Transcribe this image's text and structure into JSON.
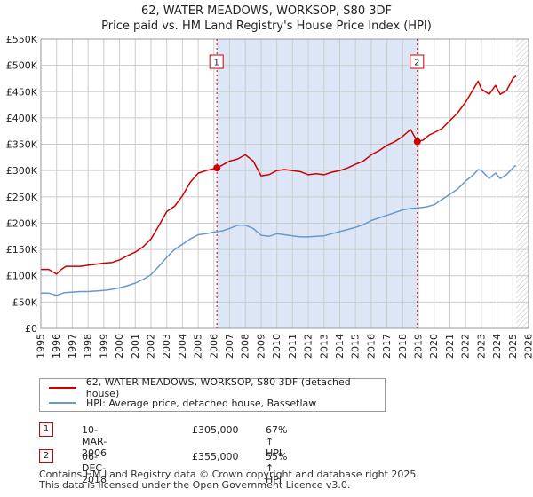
{
  "title": "62, WATER MEADOWS, WORKSOP, S80 3DF",
  "subtitle": "Price paid vs. HM Land Registry's House Price Index (HPI)",
  "legend": {
    "property_label": "62, WATER MEADOWS, WORKSOP, S80 3DF (detached house)",
    "hpi_label": "HPI: Average price, detached house, Bassetlaw"
  },
  "sales": [
    {
      "num": "1",
      "date": "10-MAR-2006",
      "price": "£305,000",
      "hpi": "67% ↑ HPI"
    },
    {
      "num": "2",
      "date": "06-DEC-2018",
      "price": "£355,000",
      "hpi": "55% ↑ HPI"
    }
  ],
  "footer": {
    "line1": "Contains HM Land Registry data © Crown copyright and database right 2025.",
    "line2": "This data is licensed under the Open Government Licence v3.0."
  },
  "colors": {
    "property": "#cc0000",
    "hpi": "#6699cc",
    "shade": "#dde6f7",
    "grid": "#cccccc"
  },
  "chart_data": {
    "type": "line",
    "xlim": [
      1995,
      2026
    ],
    "ylim": [
      0,
      550000
    ],
    "y_ticks": [
      0,
      50000,
      100000,
      150000,
      200000,
      250000,
      300000,
      350000,
      400000,
      450000,
      500000,
      550000
    ],
    "y_tick_labels": [
      "£0",
      "£50K",
      "£100K",
      "£150K",
      "£200K",
      "£250K",
      "£300K",
      "£350K",
      "£400K",
      "£450K",
      "£500K",
      "£550K"
    ],
    "x_ticks": [
      1995,
      1996,
      1997,
      1998,
      1999,
      2000,
      2001,
      2002,
      2003,
      2004,
      2005,
      2006,
      2007,
      2008,
      2009,
      2010,
      2011,
      2012,
      2013,
      2014,
      2015,
      2016,
      2017,
      2018,
      2019,
      2020,
      2021,
      2022,
      2023,
      2024,
      2025,
      2026
    ],
    "x_tick_labels": [
      "1995",
      "1996",
      "1997",
      "1998",
      "1999",
      "2000",
      "2001",
      "2002",
      "2003",
      "2004",
      "2005",
      "2006",
      "2007",
      "2008",
      "2009",
      "2010",
      "2011",
      "2012",
      "2013",
      "2014",
      "2015",
      "2016",
      "2017",
      "2018",
      "2019",
      "2020",
      "2021",
      "2022",
      "2023",
      "2024",
      "2025",
      "2026"
    ],
    "grid": true,
    "shaded_range": [
      2006.19,
      2018.93
    ],
    "future_hatch_from": 2025.2,
    "series": [
      {
        "name": "62, WATER MEADOWS, WORKSOP, S80 3DF (detached house)",
        "color": "#cc0000",
        "x": [
          1995.0,
          1995.5,
          1996.0,
          1996.3,
          1996.6,
          1997.0,
          1997.5,
          1998.0,
          1998.5,
          1999.0,
          1999.5,
          2000.0,
          2000.5,
          2001.0,
          2001.5,
          2002.0,
          2002.5,
          2003.0,
          2003.5,
          2004.0,
          2004.5,
          2005.0,
          2005.5,
          2006.19,
          2006.5,
          2007.0,
          2007.5,
          2008.0,
          2008.5,
          2009.0,
          2009.5,
          2010.0,
          2010.5,
          2011.0,
          2011.5,
          2012.0,
          2012.5,
          2013.0,
          2013.5,
          2014.0,
          2014.5,
          2015.0,
          2015.5,
          2016.0,
          2016.5,
          2017.0,
          2017.5,
          2018.0,
          2018.5,
          2018.93,
          2019.3,
          2019.7,
          2020.0,
          2020.5,
          2021.0,
          2021.5,
          2022.0,
          2022.5,
          2022.8,
          2023.0,
          2023.5,
          2023.9,
          2024.2,
          2024.6,
          2025.0,
          2025.2
        ],
        "y": [
          112000,
          112000,
          103000,
          112000,
          118000,
          118000,
          118000,
          120000,
          122000,
          124000,
          125000,
          130000,
          138000,
          145000,
          155000,
          170000,
          195000,
          222000,
          232000,
          252000,
          278000,
          295000,
          300000,
          305000,
          310000,
          318000,
          322000,
          330000,
          318000,
          290000,
          292000,
          300000,
          302000,
          300000,
          298000,
          292000,
          294000,
          292000,
          297000,
          300000,
          305000,
          312000,
          318000,
          330000,
          338000,
          348000,
          355000,
          365000,
          378000,
          355000,
          358000,
          368000,
          372000,
          380000,
          395000,
          410000,
          430000,
          455000,
          470000,
          455000,
          445000,
          462000,
          445000,
          452000,
          475000,
          480000
        ]
      },
      {
        "name": "HPI: Average price, detached house, Bassetlaw",
        "color": "#6699cc",
        "x": [
          1995.0,
          1995.5,
          1996.0,
          1996.5,
          1997.0,
          1997.5,
          1998.0,
          1998.5,
          1999.0,
          1999.5,
          2000.0,
          2000.5,
          2001.0,
          2001.5,
          2002.0,
          2002.5,
          2003.0,
          2003.5,
          2004.0,
          2004.5,
          2005.0,
          2005.5,
          2006.0,
          2006.5,
          2007.0,
          2007.5,
          2008.0,
          2008.5,
          2009.0,
          2009.5,
          2010.0,
          2010.5,
          2011.0,
          2011.5,
          2012.0,
          2012.5,
          2013.0,
          2013.5,
          2014.0,
          2014.5,
          2015.0,
          2015.5,
          2016.0,
          2016.5,
          2017.0,
          2017.5,
          2018.0,
          2018.5,
          2019.0,
          2019.5,
          2020.0,
          2020.5,
          2021.0,
          2021.5,
          2022.0,
          2022.5,
          2022.8,
          2023.0,
          2023.5,
          2023.9,
          2024.2,
          2024.6,
          2025.0,
          2025.2
        ],
        "y": [
          67000,
          67000,
          63000,
          68000,
          69000,
          70000,
          70000,
          71000,
          72000,
          74000,
          77000,
          81000,
          86000,
          93000,
          102000,
          118000,
          135000,
          150000,
          160000,
          170000,
          178000,
          180000,
          183000,
          185000,
          190000,
          196000,
          196000,
          190000,
          177000,
          175000,
          180000,
          178000,
          176000,
          174000,
          174000,
          175000,
          176000,
          180000,
          184000,
          188000,
          192000,
          197000,
          205000,
          210000,
          215000,
          220000,
          225000,
          228000,
          229000,
          231000,
          235000,
          245000,
          255000,
          265000,
          280000,
          292000,
          302000,
          300000,
          285000,
          295000,
          285000,
          292000,
          305000,
          310000
        ]
      }
    ],
    "markers": [
      {
        "label": "1",
        "x": 2006.19,
        "y": 305000
      },
      {
        "label": "2",
        "x": 2018.93,
        "y": 355000
      }
    ]
  }
}
